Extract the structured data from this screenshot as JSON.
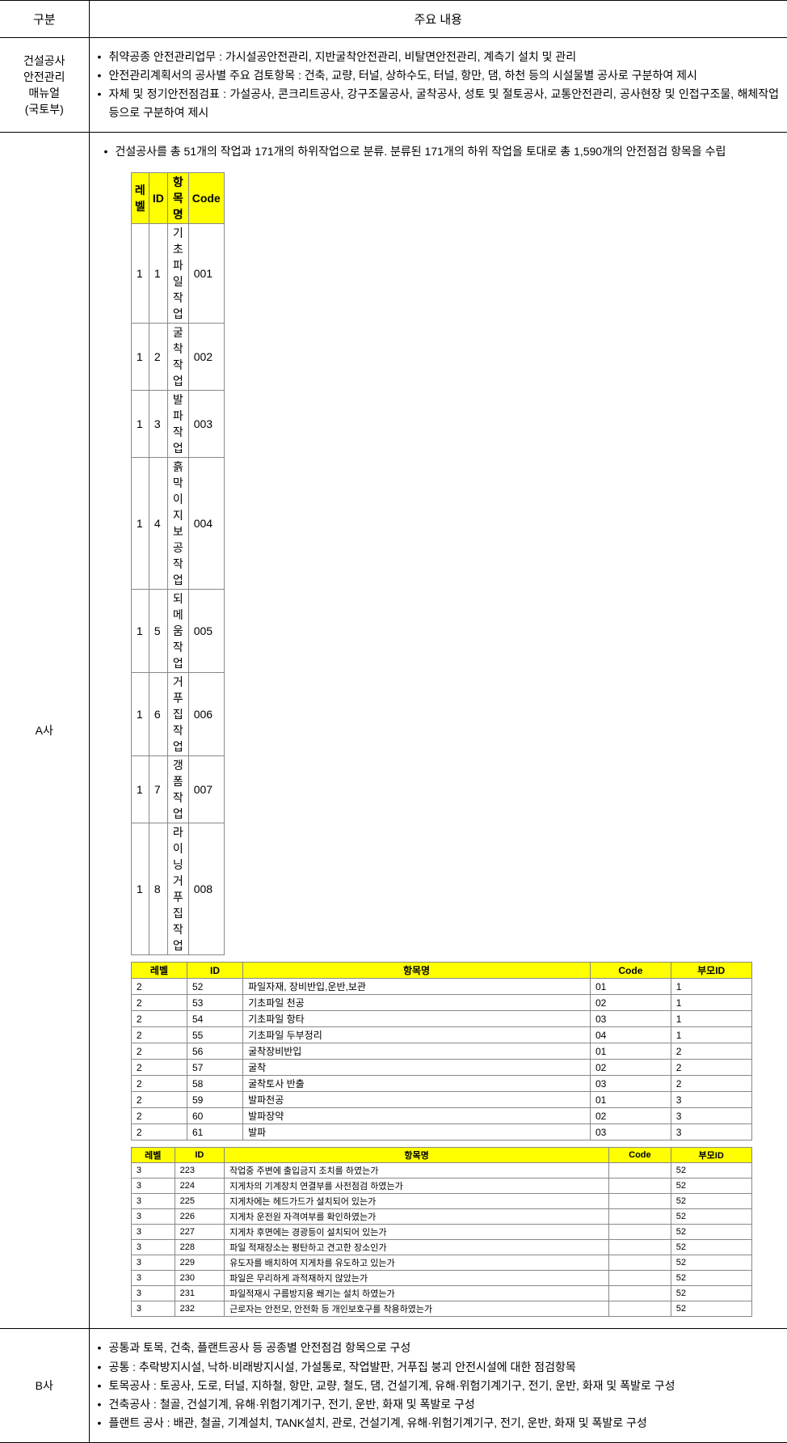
{
  "header": {
    "col1": "구분",
    "col2": "주요 내용"
  },
  "rows": {
    "r1": {
      "title_l1": "건설공사",
      "title_l2": "안전관리",
      "title_l3": "매뉴얼",
      "title_l4": "(국토부)",
      "bullets": [
        "취약공종 안전관리업무 : 가시설공안전관리, 지반굴착안전관리, 비탈면안전관리, 계측기 설치 및 관리",
        "안전관리계획서의 공사별 주요 검토항목 : 건축, 교량, 터널, 상하수도, 터널, 항만, 댐, 하천 등의 시설물별 공사로 구분하여 제시",
        "자체 및 정기안전점검표 : 가설공사, 콘크리트공사, 강구조물공사, 굴착공사, 성토 및 절토공사, 교통안전관리, 공사현장 및 인접구조물, 해체작업 등으로 구분하여 제시"
      ]
    },
    "r2": {
      "title": "A사",
      "intro": "건설공사를 총 51개의 작업과 171개의 하위작업으로 분류. 분류된 171개의 하위 작업을 토대로 총 1,590개의 안전점검 항목을 수립",
      "table1": {
        "head": {
          "c1": "레벨",
          "c2": "ID",
          "c3": "항목명",
          "c4": "Code"
        },
        "col_widths": {
          "c1": "12%",
          "c2": "10%",
          "c3": "58%",
          "c4": "20%"
        },
        "rows": [
          {
            "c1": "1",
            "c2": "1",
            "c3": "기초파일 작업",
            "c4": "001"
          },
          {
            "c1": "1",
            "c2": "2",
            "c3": "굴착작업",
            "c4": "002"
          },
          {
            "c1": "1",
            "c2": "3",
            "c3": "발파작업",
            "c4": "003"
          },
          {
            "c1": "1",
            "c2": "4",
            "c3": "흙막이 지보공 작업",
            "c4": "004"
          },
          {
            "c1": "1",
            "c2": "5",
            "c3": "되메움 작업",
            "c4": "005"
          },
          {
            "c1": "1",
            "c2": "6",
            "c3": "거푸집 작업",
            "c4": "006"
          },
          {
            "c1": "1",
            "c2": "7",
            "c3": "갱폼 작업",
            "c4": "007"
          },
          {
            "c1": "1",
            "c2": "8",
            "c3": "라이닝 거푸집 작업",
            "c4": "008"
          }
        ]
      },
      "table2": {
        "head": {
          "c1": "레벨",
          "c2": "ID",
          "c3": "항목명",
          "c4": "Code",
          "c5": "부모ID"
        },
        "col_widths": {
          "c1": "9%",
          "c2": "9%",
          "c3": "56%",
          "c4": "13%",
          "c5": "13%"
        },
        "rows": [
          {
            "c1": "2",
            "c2": "52",
            "c3": "파일자재, 장비반입,운반,보관",
            "c4": "01",
            "c5": "1"
          },
          {
            "c1": "2",
            "c2": "53",
            "c3": "기초파일 천공",
            "c4": "02",
            "c5": "1"
          },
          {
            "c1": "2",
            "c2": "54",
            "c3": "기초파일 항타",
            "c4": "03",
            "c5": "1"
          },
          {
            "c1": "2",
            "c2": "55",
            "c3": "기초파일 두부정리",
            "c4": "04",
            "c5": "1"
          },
          {
            "c1": "2",
            "c2": "56",
            "c3": "굴착장비반입",
            "c4": "01",
            "c5": "2"
          },
          {
            "c1": "2",
            "c2": "57",
            "c3": "굴착",
            "c4": "02",
            "c5": "2"
          },
          {
            "c1": "2",
            "c2": "58",
            "c3": "굴착토사 반출",
            "c4": "03",
            "c5": "2"
          },
          {
            "c1": "2",
            "c2": "59",
            "c3": "발파천공",
            "c4": "01",
            "c5": "3"
          },
          {
            "c1": "2",
            "c2": "60",
            "c3": "발파장약",
            "c4": "02",
            "c5": "3"
          },
          {
            "c1": "2",
            "c2": "61",
            "c3": "발파",
            "c4": "03",
            "c5": "3"
          }
        ]
      },
      "table3": {
        "head": {
          "c1": "레벨",
          "c2": "ID",
          "c3": "항목명",
          "c4": "Code",
          "c5": "부모ID"
        },
        "col_widths": {
          "c1": "7%",
          "c2": "8%",
          "c3": "62%",
          "c4": "10%",
          "c5": "13%"
        },
        "rows": [
          {
            "c1": "3",
            "c2": "223",
            "c3": "작업중 주변에 출입금지 조치를 하였는가",
            "c4": "",
            "c5": "52"
          },
          {
            "c1": "3",
            "c2": "224",
            "c3": "지게차의 기계장치 연결부를 사전점검 하였는가",
            "c4": "",
            "c5": "52"
          },
          {
            "c1": "3",
            "c2": "225",
            "c3": "지게차에는 헤드가드가 설치되어 있는가",
            "c4": "",
            "c5": "52"
          },
          {
            "c1": "3",
            "c2": "226",
            "c3": "지게차 운전원 자격여부를 확인하였는가",
            "c4": "",
            "c5": "52"
          },
          {
            "c1": "3",
            "c2": "227",
            "c3": "지게차 후면에는 경광등이 설치되어 있는가",
            "c4": "",
            "c5": "52"
          },
          {
            "c1": "3",
            "c2": "228",
            "c3": "파일 적재장소는 평탄하고 견고한 장소인가",
            "c4": "",
            "c5": "52"
          },
          {
            "c1": "3",
            "c2": "229",
            "c3": "유도자를 배치하여 지게차를 유도하고 있는가",
            "c4": "",
            "c5": "52"
          },
          {
            "c1": "3",
            "c2": "230",
            "c3": "파일은 무리하게 과적재하지 않았는가",
            "c4": "",
            "c5": "52"
          },
          {
            "c1": "3",
            "c2": "231",
            "c3": "파일적재시 구름방지용 쐐기는 설치 하였는가",
            "c4": "",
            "c5": "52"
          },
          {
            "c1": "3",
            "c2": "232",
            "c3": "근로자는 안전모, 안전화 등 개인보호구를 착용하였는가",
            "c4": "",
            "c5": "52"
          }
        ]
      }
    },
    "r3": {
      "title": "B사",
      "bullets": [
        "공통과 토목, 건축, 플랜트공사 등 공종별 안전점검 항목으로 구성",
        "공통 : 추락방지시설, 낙하·비래방지시설, 가설통로, 작업발판, 거푸집 붕괴 안전시설에 대한 점검항목",
        "토목공사 : 토공사, 도로, 터널, 지하철, 항만, 교량, 철도, 댐, 건설기계, 유해·위험기계기구, 전기, 운반, 화재 및 폭발로 구성",
        "건축공사 : 철골, 건설기계, 유해·위험기계기구, 전기, 운반, 화재 및 폭발로 구성",
        "플랜트 공사 : 배관, 철골, 기계설치, TANK설치, 관로, 건설기계, 유해·위험기계기구, 전기, 운반, 화재 및 폭발로 구성"
      ]
    }
  }
}
